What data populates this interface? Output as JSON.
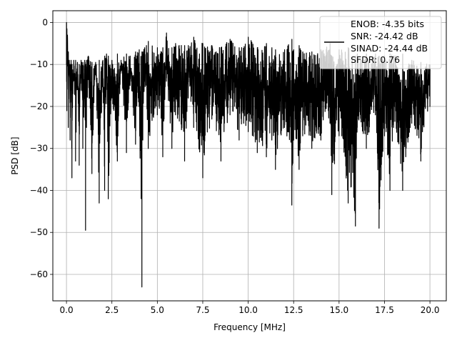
{
  "chart_data": {
    "type": "line",
    "title": "",
    "xlabel": "Frequency [MHz]",
    "ylabel": "PSD [dB]",
    "xlim": [
      -0.75,
      20.9
    ],
    "ylim": [
      -66.3,
      2.8
    ],
    "xticks": [
      0.0,
      2.5,
      5.0,
      7.5,
      10.0,
      12.5,
      15.0,
      17.5,
      20.0
    ],
    "xtick_labels": [
      "0.0",
      "2.5",
      "5.0",
      "7.5",
      "10.0",
      "12.5",
      "15.0",
      "17.5",
      "20.0"
    ],
    "yticks": [
      0,
      -10,
      -20,
      -30,
      -40,
      -50,
      -60
    ],
    "ytick_labels": [
      "0",
      "−10",
      "−20",
      "−30",
      "−40",
      "−50",
      "−60"
    ],
    "grid": true,
    "legend_position": "top-right",
    "legend_entries": [
      "ENOB: -4.35 bits",
      "SNR: -24.42 dB",
      "SINAD: -24.44 dB",
      "SFDR: 0.76"
    ],
    "line_color": "#000000",
    "series": [
      {
        "x": [
          0.0,
          0.02,
          0.05,
          0.1,
          0.15,
          0.2,
          0.25,
          0.3,
          0.4,
          0.5,
          0.6,
          0.7,
          0.8,
          0.9,
          1.0,
          1.05,
          1.1,
          1.2,
          1.4,
          1.6,
          1.8,
          2.0,
          2.1,
          2.2,
          2.3,
          2.5,
          2.8,
          3.0,
          3.3,
          3.5,
          3.8,
          4.0,
          4.15,
          4.2,
          4.3,
          4.5,
          5.0,
          5.3,
          5.5,
          5.8,
          6.0,
          6.5,
          6.7,
          7.0,
          7.5,
          8.0,
          8.5,
          9.0,
          9.5,
          10.0,
          10.5,
          11.0,
          11.3,
          11.5,
          12.0,
          12.4,
          12.5,
          12.8,
          13.0,
          13.5,
          14.0,
          14.5,
          14.6,
          15.0,
          15.5,
          15.9,
          16.0,
          16.5,
          17.0,
          17.2,
          17.5,
          17.8,
          18.0,
          18.5,
          19.0,
          19.5,
          20.0
        ],
        "y": [
          -10.0,
          -21.0,
          -3.0,
          -25.0,
          -11.0,
          -28.0,
          -14.0,
          -37.0,
          -9.0,
          -33.0,
          -16.0,
          -34.0,
          -12.0,
          -30.0,
          -18.0,
          -49.5,
          -25.0,
          -13.0,
          -36.0,
          -10.0,
          -43.0,
          -15.0,
          -40.0,
          -12.0,
          -42.0,
          -18.0,
          -33.0,
          -11.0,
          -31.0,
          -15.0,
          -29.0,
          -20.0,
          -63.0,
          -28.0,
          -14.0,
          -30.0,
          -22.0,
          -32.0,
          -14.0,
          -30.0,
          -22.0,
          -33.0,
          -18.0,
          -25.0,
          -37.0,
          -23.0,
          -33.0,
          -22.0,
          -28.0,
          -26.0,
          -31.0,
          -32.0,
          -28.0,
          -35.0,
          -25.0,
          -43.5,
          -28.0,
          -35.0,
          -27.0,
          -30.0,
          -28.0,
          -24.0,
          -41.0,
          -27.0,
          -43.0,
          -48.5,
          -25.0,
          -30.0,
          -22.0,
          -49.0,
          -27.0,
          -40.0,
          -25.0,
          -40.0,
          -24.0,
          -33.0,
          -20.0
        ],
        "upper": [
          0.0,
          -1.5,
          -3.0,
          -7.0,
          -9.0,
          -10.0,
          -9.0,
          -10.0,
          -10.5,
          -9.0,
          -9.5,
          -10.0,
          -9.0,
          -9.5,
          -9.0,
          -10.0,
          -9.0,
          -8.0,
          -9.5,
          -9.5,
          -9.0,
          -9.0,
          -8.0,
          -7.5,
          -8.0,
          -9.0,
          -7.5,
          -9.0,
          -7.5,
          -8.0,
          -7.0,
          -6.5,
          -7.0,
          -7.0,
          -6.0,
          -4.5,
          -6.0,
          -6.0,
          -2.5,
          -6.0,
          -5.0,
          -5.5,
          -5.5,
          -3.5,
          -5.0,
          -5.5,
          -6.0,
          -4.0,
          -6.0,
          -3.5,
          -6.0,
          -5.0,
          -6.0,
          -6.5,
          -6.5,
          -4.0,
          -6.5,
          -5.5,
          -7.0,
          -7.0,
          -6.5,
          -5.0,
          -8.0,
          -6.5,
          -6.0,
          -8.0,
          -7.5,
          -7.5,
          -7.5,
          -8.0,
          -8.0,
          -7.5,
          -8.0,
          -7.5,
          -9.0,
          -9.5,
          -10.0
        ]
      }
    ]
  }
}
